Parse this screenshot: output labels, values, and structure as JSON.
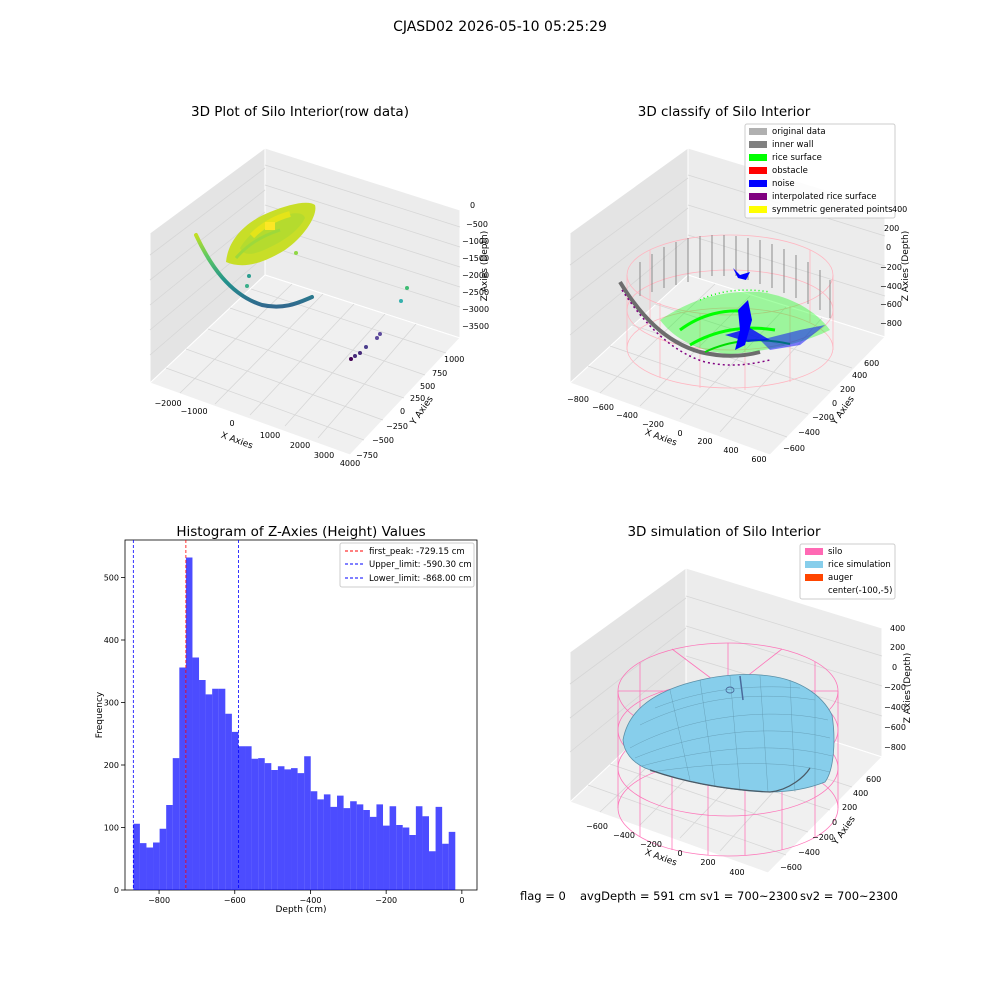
{
  "suptitle": "CJASD02 2026-05-10 05:25:29",
  "footer": {
    "flag": "flag = 0",
    "avg_depth": "avgDepth = 591 cm",
    "sv1": "sv1 = 700~2300",
    "sv2": "sv2 = 700~2300"
  },
  "chart_data": [
    {
      "type": "scatter",
      "title": "3D Plot of Silo Interior(row data)",
      "xlabel": "X Axies",
      "ylabel": "Y Axies",
      "zlabel": "Z Axies (Depth)",
      "x_ticks": [
        "−2000",
        "−1000",
        "0",
        "1000",
        "2000",
        "3000",
        "4000"
      ],
      "y_ticks": [
        "−750",
        "−500",
        "−250",
        "0",
        "250",
        "500",
        "750",
        "1000"
      ],
      "z_ticks": [
        "0",
        "−500",
        "−1000",
        "−1500",
        "−2000",
        "−2500",
        "−3000",
        "−3500"
      ],
      "colormap": [
        "#440154",
        "#31688e",
        "#21918c",
        "#35b779",
        "#90d743",
        "#fde725"
      ]
    },
    {
      "type": "scatter",
      "title": "3D classify of Silo Interior",
      "xlabel": "X Axies",
      "ylabel": "Y Axies",
      "zlabel": "Z Axies (Depth)",
      "x_ticks": [
        "−800",
        "−600",
        "−400",
        "−200",
        "0",
        "200",
        "400",
        "600"
      ],
      "y_ticks": [
        "−600",
        "−400",
        "−200",
        "0",
        "200",
        "400",
        "600"
      ],
      "z_ticks": [
        "400",
        "200",
        "0",
        "−200",
        "−400",
        "−600",
        "−800"
      ],
      "z_top_tick": "400",
      "legend_position": "top-right",
      "legend": [
        {
          "label": "original data",
          "color": "#b0b0b0"
        },
        {
          "label": "inner wall",
          "color": "#808080"
        },
        {
          "label": "rice surface",
          "color": "#00ff00"
        },
        {
          "label": "obstacle",
          "color": "#ff0000"
        },
        {
          "label": "noise",
          "color": "#0000ff"
        },
        {
          "label": "interpolated rice surface",
          "color": "#800080"
        },
        {
          "label": "symmetric generated points",
          "color": "#ffff00"
        }
      ]
    },
    {
      "type": "bar",
      "title": "Histogram of Z-Axies (Height) Values",
      "xlabel": "Depth (cm)",
      "ylabel": "Frequency",
      "xlim": [
        -890,
        40
      ],
      "ylim": [
        0,
        560
      ],
      "x_ticks": [
        -800,
        -600,
        -400,
        -200,
        0
      ],
      "x_tick_labels": [
        "−800",
        "−600",
        "−400",
        "−200",
        "0"
      ],
      "y_ticks": [
        0,
        100,
        200,
        300,
        400,
        500
      ],
      "bar_color": "#0000ff",
      "bin_start": -868,
      "bin_width": 17.36,
      "values": [
        106,
        75,
        68,
        76,
        98,
        136,
        211,
        356,
        532,
        372,
        336,
        313,
        322,
        322,
        282,
        253,
        230,
        230,
        210,
        211,
        203,
        192,
        198,
        193,
        195,
        187,
        214,
        158,
        145,
        153,
        133,
        151,
        131,
        142,
        137,
        128,
        117,
        137,
        103,
        134,
        104,
        100,
        88,
        134,
        118,
        62,
        133,
        74,
        93
      ],
      "legend_position": "top-right",
      "lines": [
        {
          "label": "first_peak: -729.15 cm",
          "x": -729.15,
          "color": "#ff0000"
        },
        {
          "label": "Upper_limit: -590.30 cm",
          "x": -590.3,
          "color": "#0000ff"
        },
        {
          "label": "Lower_limit: -868.00 cm",
          "x": -868,
          "color": "#0000ff"
        }
      ]
    },
    {
      "type": "surface",
      "title": "3D simulation of Silo Interior",
      "xlabel": "X Axies",
      "ylabel": "Y Axies",
      "zlabel": "Z Axies (Depth)",
      "x_ticks": [
        "−600",
        "−400",
        "−200",
        "0",
        "200",
        "400"
      ],
      "y_ticks": [
        "−600",
        "−400",
        "−200",
        "0",
        "200",
        "400",
        "600"
      ],
      "z_ticks": [
        "400",
        "200",
        "0",
        "−200",
        "−400",
        "−600",
        "−800"
      ],
      "legend_position": "top-right",
      "legend": [
        {
          "label": "silo",
          "color": "#ff69b4"
        },
        {
          "label": "rice simulation",
          "color": "#87ceeb"
        },
        {
          "label": "auger",
          "color": "#ff4500"
        },
        {
          "label": "center(-100,-5)",
          "color": "none"
        }
      ]
    }
  ]
}
